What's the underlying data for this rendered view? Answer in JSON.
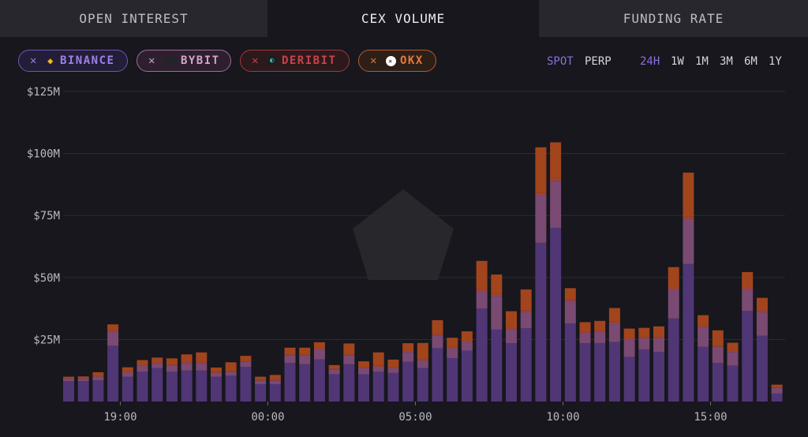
{
  "tabs": [
    {
      "label": "OPEN INTEREST",
      "active": false
    },
    {
      "label": "CEX VOLUME",
      "active": true
    },
    {
      "label": "FUNDING RATE",
      "active": false
    }
  ],
  "exchange_filters": [
    {
      "label": "BINANCE",
      "remove_glyph": "✕",
      "icon": "binance-logo-icon",
      "color": "#9a82e6"
    },
    {
      "label": "BYBIT",
      "remove_glyph": "✕",
      "icon": "bybit-logo-icon",
      "color": "#cfa6c9"
    },
    {
      "label": "DERIBIT",
      "remove_glyph": "✕",
      "icon": "deribit-logo-icon",
      "color": "#c8434a"
    },
    {
      "label": "OKX",
      "remove_glyph": "✕",
      "icon": "okx-logo-icon",
      "color": "#e57a3b"
    }
  ],
  "market_type": {
    "options": [
      "SPOT",
      "PERP"
    ],
    "selected": "SPOT"
  },
  "timeframe": {
    "options": [
      "24H",
      "1W",
      "1M",
      "3M",
      "6M",
      "1Y"
    ],
    "selected": "24H"
  },
  "colors": {
    "accent": "#8c6fe0",
    "binance": "#503675",
    "bybit": "#7a4a72",
    "deribit": "#9f4239",
    "okx": "#a2451c",
    "grid": "#2c2c34",
    "background": "#17171d"
  },
  "chart_data": {
    "type": "bar",
    "stacked": true,
    "xlabel": "",
    "ylabel": "",
    "ylim": [
      0,
      125000000
    ],
    "y_ticks": [
      {
        "value": 25000000,
        "label": "$25M"
      },
      {
        "value": 50000000,
        "label": "$50M"
      },
      {
        "value": 75000000,
        "label": "$75M"
      },
      {
        "value": 100000000,
        "label": "$100M"
      },
      {
        "value": 125000000,
        "label": "$125M"
      }
    ],
    "x_ticks": [
      {
        "index": 3.5,
        "label": "19:00"
      },
      {
        "index": 13.5,
        "label": "00:00"
      },
      {
        "index": 23.5,
        "label": "05:00"
      },
      {
        "index": 33.5,
        "label": "10:00"
      },
      {
        "index": 43.5,
        "label": "15:00"
      }
    ],
    "grid": true,
    "legend": "none",
    "series": [
      {
        "name": "BINANCE",
        "color": "#503675",
        "values": [
          8.2,
          8.2,
          8.5,
          22.5,
          10,
          12,
          13.5,
          12,
          12.5,
          12.5,
          10,
          10.5,
          14,
          7,
          7,
          15.5,
          15,
          17,
          11,
          15,
          11,
          12,
          11.5,
          16,
          13.5,
          21.5,
          17.5,
          20.5,
          37.5,
          29,
          23.5,
          29.5,
          64,
          70,
          31.5,
          23.5,
          23.5,
          24,
          18,
          21,
          20,
          33.5,
          55.5,
          22,
          15.5,
          14.5,
          36.5,
          26.5,
          3.2
        ]
      },
      {
        "name": "BYBIT",
        "color": "#7a4a72",
        "values": [
          1,
          1,
          1.5,
          5.5,
          1.8,
          2.5,
          2,
          2.5,
          3,
          3,
          1.5,
          1.5,
          2,
          1.5,
          1.5,
          3,
          3.5,
          4,
          2,
          3.5,
          2.5,
          2,
          2,
          4,
          3,
          5,
          4,
          3.5,
          7,
          13.5,
          5.5,
          6.5,
          19,
          19,
          9,
          4.2,
          4.5,
          7.5,
          7,
          4.5,
          5.5,
          11.5,
          18,
          8,
          6.5,
          5.5,
          8.5,
          9.5,
          2.3
        ]
      },
      {
        "name": "DERIBIT",
        "color": "#9f4239",
        "values": [
          0.3,
          0.3,
          0.3,
          0.5,
          0.3,
          0.3,
          0.4,
          0.4,
          0.5,
          0.5,
          0.3,
          0.3,
          0.4,
          0.2,
          0.2,
          0.5,
          0.4,
          0.5,
          0.3,
          0.5,
          0.3,
          0.4,
          0.3,
          0.5,
          0.4,
          0.6,
          0.5,
          0.5,
          0.8,
          0.8,
          0.6,
          0.8,
          1.2,
          1.2,
          0.8,
          0.6,
          0.6,
          0.7,
          0.6,
          0.6,
          0.6,
          0.8,
          1,
          0.7,
          0.5,
          0.5,
          0.8,
          0.7,
          0.2
        ]
      },
      {
        "name": "OKX",
        "color": "#a2451c",
        "values": [
          0.5,
          0.6,
          1.5,
          2.6,
          1.7,
          1.9,
          1.8,
          2.5,
          3,
          3.8,
          1.9,
          3.5,
          2,
          1.3,
          2,
          2.7,
          2.8,
          2.4,
          1.4,
          4.4,
          2.4,
          5.4,
          3.1,
          3,
          6.7,
          5.7,
          3.7,
          3.8,
          11.4,
          7.9,
          6.8,
          8.4,
          18.3,
          14.3,
          4.4,
          3.7,
          3.9,
          5.5,
          3.8,
          3.6,
          4.2,
          8.4,
          17.8,
          4.1,
          6.2,
          3.2,
          6.4,
          5.1,
          1.1
        ]
      }
    ]
  }
}
